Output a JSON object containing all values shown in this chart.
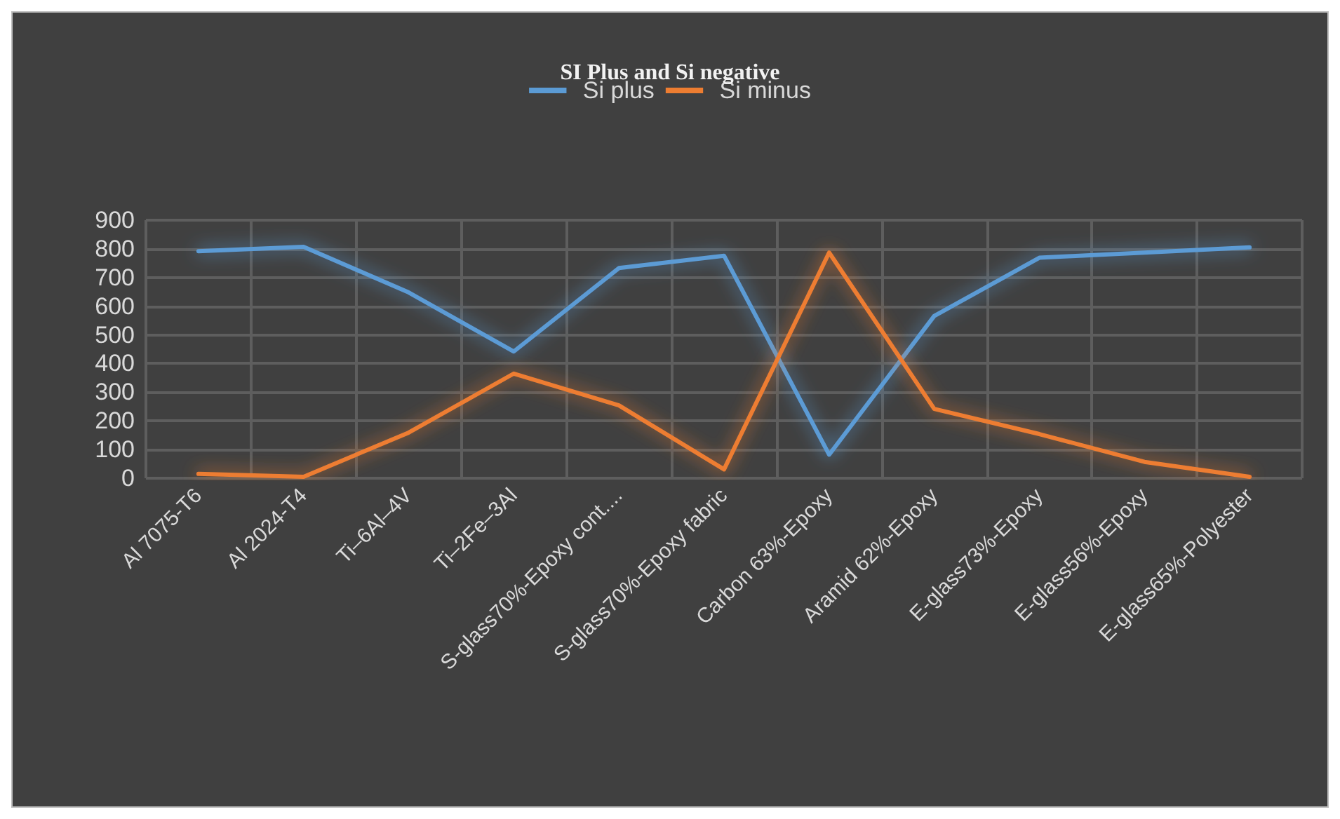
{
  "chart_data": {
    "type": "line",
    "title": "SI Plus and Si negative",
    "categories": [
      "Al 7075-T6",
      "Al 2024-T4",
      "Ti–6Al–4V",
      "Ti–2Fe–3Al",
      "S-glass70%-Epoxy cont....",
      "S-glass70%-Epoxy fabric",
      "Carbon 63%-Epoxy",
      "Aramid 62%-Epoxy",
      "E-glass73%-Epoxy",
      "E-glass56%-Epoxy",
      "E-glass65%-Polyester"
    ],
    "series": [
      {
        "name": "Si plus",
        "color": "#5b9bd5",
        "values": [
          792,
          807,
          648,
          442,
          733,
          776,
          82,
          566,
          769,
          787,
          805
        ]
      },
      {
        "name": "Si minus",
        "color": "#ed7d31",
        "values": [
          15,
          5,
          159,
          365,
          254,
          31,
          787,
          242,
          154,
          57,
          5
        ]
      }
    ],
    "ylim": [
      0,
      900
    ],
    "yticks": [
      0,
      100,
      200,
      300,
      400,
      500,
      600,
      700,
      800,
      900
    ],
    "grid": true,
    "legend": "top",
    "marker": "none",
    "line_style": "solid"
  }
}
